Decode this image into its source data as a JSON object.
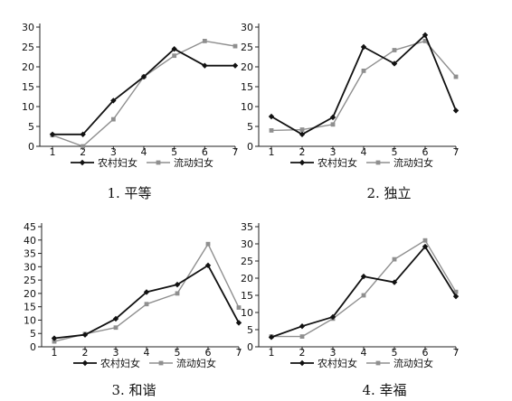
{
  "legend": {
    "rural": "农村妇女",
    "migrant": "流动妇女"
  },
  "colors": {
    "rural": "#111111",
    "migrant": "#8f8f8f",
    "axis": "#222222"
  },
  "captions": [
    "1. 平等",
    "2. 独立",
    "3. 和谐",
    "4. 幸福"
  ],
  "chart_data": [
    {
      "type": "line",
      "title": "1. 平等",
      "x": [
        1,
        2,
        3,
        4,
        5,
        6,
        7
      ],
      "ylim": [
        0,
        30
      ],
      "yticks": [
        0,
        5,
        10,
        15,
        20,
        25,
        30
      ],
      "grid": false,
      "legend_position": "bottom",
      "series": [
        {
          "name": "农村妇女",
          "values": [
            3,
            3,
            11.5,
            17.5,
            24.5,
            20.3,
            20.3
          ]
        },
        {
          "name": "流动妇女",
          "values": [
            2.8,
            0,
            6.8,
            17.5,
            22.8,
            26.5,
            25.2
          ]
        }
      ]
    },
    {
      "type": "line",
      "title": "2. 独立",
      "x": [
        1,
        2,
        3,
        4,
        5,
        6,
        7
      ],
      "ylim": [
        0,
        30
      ],
      "yticks": [
        0,
        5,
        10,
        15,
        20,
        25,
        30
      ],
      "grid": false,
      "legend_position": "bottom",
      "series": [
        {
          "name": "农村妇女",
          "values": [
            7.5,
            3,
            7.3,
            25,
            20.8,
            28,
            9
          ]
        },
        {
          "name": "流动妇女",
          "values": [
            4,
            4.2,
            5.5,
            19,
            24.2,
            26.5,
            17.5
          ]
        }
      ]
    },
    {
      "type": "line",
      "title": "3. 和谐",
      "x": [
        1,
        2,
        3,
        4,
        5,
        6,
        7
      ],
      "ylim": [
        0,
        45
      ],
      "yticks": [
        0,
        5,
        10,
        15,
        20,
        25,
        30,
        35,
        40,
        45
      ],
      "grid": false,
      "legend_position": "bottom",
      "series": [
        {
          "name": "农村妇女",
          "values": [
            3.2,
            4.5,
            10.5,
            20.5,
            23.3,
            30.5,
            9
          ]
        },
        {
          "name": "流动妇女",
          "values": [
            2,
            4.8,
            7.2,
            16,
            20,
            38.5,
            14.7
          ]
        }
      ]
    },
    {
      "type": "line",
      "title": "4. 幸福",
      "x": [
        1,
        2,
        3,
        4,
        5,
        6,
        7
      ],
      "ylim": [
        0,
        35
      ],
      "yticks": [
        0,
        5,
        10,
        15,
        20,
        25,
        30,
        35
      ],
      "grid": false,
      "legend_position": "bottom",
      "series": [
        {
          "name": "农村妇女",
          "values": [
            2.8,
            6,
            8.7,
            20.5,
            18.8,
            29.2,
            14.7
          ]
        },
        {
          "name": "流动妇女",
          "values": [
            3,
            3,
            8.2,
            15,
            25.5,
            31,
            16
          ]
        }
      ]
    }
  ]
}
